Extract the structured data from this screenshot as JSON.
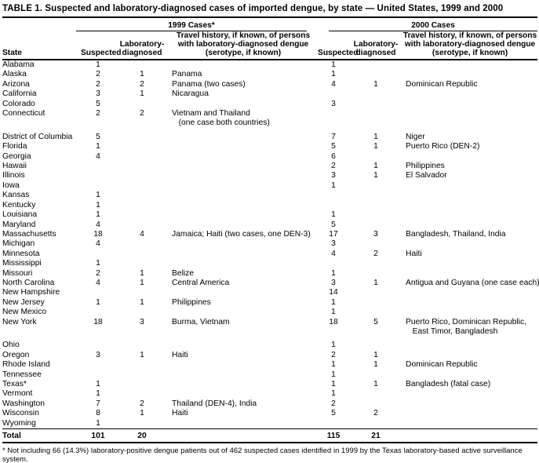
{
  "title": "TABLE 1. Suspected and laboratory-diagnosed cases of imported dengue, by state — United States, 1999 and 2000",
  "header": {
    "state": "State",
    "group_1999": "1999 Cases*",
    "group_2000": "2000 Cases",
    "suspected": "Suspected",
    "lab_diagnosed": "Laboratory-\ndiagnosed",
    "travel": "Travel history, if known, of persons\nwith laboratory-diagnosed dengue\n(serotype, if known)"
  },
  "rows": [
    {
      "state": "Alabama",
      "s99": "1",
      "l99": "",
      "t99": "",
      "s00": "1",
      "l00": "",
      "t00": ""
    },
    {
      "state": "Alaska",
      "s99": "2",
      "l99": "1",
      "t99": "Panama",
      "s00": "1",
      "l00": "",
      "t00": ""
    },
    {
      "state": "Arizona",
      "s99": "2",
      "l99": "2",
      "t99": "Panama (two cases)",
      "s00": "4",
      "l00": "1",
      "t00": "Dominican Republic"
    },
    {
      "state": "California",
      "s99": "3",
      "l99": "1",
      "t99": "Nicaragua",
      "s00": "",
      "l00": "",
      "t00": ""
    },
    {
      "state": "Colorado",
      "s99": "5",
      "l99": "",
      "t99": "",
      "s00": "3",
      "l00": "",
      "t00": ""
    },
    {
      "state": "Connecticut",
      "s99": "2",
      "l99": "2",
      "t99": "Vietnam and Thailand\n   (one case both countries)",
      "s00": "",
      "l00": "",
      "t00": "",
      "gap_after": true
    },
    {
      "state": "District of Columbia",
      "s99": "5",
      "l99": "",
      "t99": "",
      "s00": "7",
      "l00": "1",
      "t00": "Niger"
    },
    {
      "state": "Florida",
      "s99": "1",
      "l99": "",
      "t99": "",
      "s00": "5",
      "l00": "1",
      "t00": "Puerto Rico (DEN-2)"
    },
    {
      "state": "Georgia",
      "s99": "4",
      "l99": "",
      "t99": "",
      "s00": "6",
      "l00": "",
      "t00": ""
    },
    {
      "state": "Hawaii",
      "s99": "",
      "l99": "",
      "t99": "",
      "s00": "2",
      "l00": "1",
      "t00": "Philippines"
    },
    {
      "state": "Illinois",
      "s99": "",
      "l99": "",
      "t99": "",
      "s00": "3",
      "l00": "1",
      "t00": "El Salvador"
    },
    {
      "state": "Iowa",
      "s99": "",
      "l99": "",
      "t99": "",
      "s00": "1",
      "l00": "",
      "t00": ""
    },
    {
      "state": "Kansas",
      "s99": "1",
      "l99": "",
      "t99": "",
      "s00": "",
      "l00": "",
      "t00": ""
    },
    {
      "state": "Kentucky",
      "s99": "1",
      "l99": "",
      "t99": "",
      "s00": "",
      "l00": "",
      "t00": ""
    },
    {
      "state": "Louisiana",
      "s99": "1",
      "l99": "",
      "t99": "",
      "s00": "1",
      "l00": "",
      "t00": ""
    },
    {
      "state": "Maryland",
      "s99": "4",
      "l99": "",
      "t99": "",
      "s00": "5",
      "l00": "",
      "t00": ""
    },
    {
      "state": "Massachusetts",
      "s99": "18",
      "l99": "4",
      "t99": "Jamaica; Haiti (two cases, one DEN-3)",
      "s00": "17",
      "l00": "3",
      "t00": "Bangladesh, Thailand, India"
    },
    {
      "state": "Michigan",
      "s99": "4",
      "l99": "",
      "t99": "",
      "s00": "3",
      "l00": "",
      "t00": ""
    },
    {
      "state": "Minnesota",
      "s99": "",
      "l99": "",
      "t99": "",
      "s00": "4",
      "l00": "2",
      "t00": "Haiti"
    },
    {
      "state": "Mississippi",
      "s99": "1",
      "l99": "",
      "t99": "",
      "s00": "",
      "l00": "",
      "t00": ""
    },
    {
      "state": "Missouri",
      "s99": "2",
      "l99": "1",
      "t99": "Belize",
      "s00": "1",
      "l00": "",
      "t00": ""
    },
    {
      "state": "North Carolina",
      "s99": "4",
      "l99": "1",
      "t99": "Central America",
      "s00": "3",
      "l00": "1",
      "t00": "Antigua and Guyana (one case each)"
    },
    {
      "state": "New Hampshire",
      "s99": "",
      "l99": "",
      "t99": "",
      "s00": "14",
      "l00": "",
      "t00": ""
    },
    {
      "state": "New Jersey",
      "s99": "1",
      "l99": "1",
      "t99": "Philippines",
      "s00": "1",
      "l00": "",
      "t00": ""
    },
    {
      "state": "New Mexico",
      "s99": "",
      "l99": "",
      "t99": "",
      "s00": "1",
      "l00": "",
      "t00": ""
    },
    {
      "state": "New York",
      "s99": "18",
      "l99": "3",
      "t99": "Burma, Vietnam",
      "s00": "18",
      "l00": "5",
      "t00": "Puerto Rico, Dominican Republic,\n   East Timor, Bangladesh",
      "gap_after": true
    },
    {
      "state": "Ohio",
      "s99": "",
      "l99": "",
      "t99": "",
      "s00": "1",
      "l00": "",
      "t00": ""
    },
    {
      "state": "Oregon",
      "s99": "3",
      "l99": "1",
      "t99": "Haiti",
      "s00": "2",
      "l00": "1",
      "t00": ""
    },
    {
      "state": "Rhode Island",
      "s99": "",
      "l99": "",
      "t99": "",
      "s00": "1",
      "l00": "1",
      "t00": "Dominican Republic"
    },
    {
      "state": "Tennessee",
      "s99": "",
      "l99": "",
      "t99": "",
      "s00": "1",
      "l00": "",
      "t00": ""
    },
    {
      "state": "Texas*",
      "s99": "1",
      "l99": "",
      "t99": "",
      "s00": "1",
      "l00": "1",
      "t00": "Bangladesh (fatal case)"
    },
    {
      "state": "Vermont",
      "s99": "1",
      "l99": "",
      "t99": "",
      "s00": "1",
      "l00": "",
      "t00": ""
    },
    {
      "state": "Washington",
      "s99": "7",
      "l99": "2",
      "t99": "Thailand (DEN-4), India",
      "s00": "2",
      "l00": "",
      "t00": ""
    },
    {
      "state": "Wisconsin",
      "s99": "8",
      "l99": "1",
      "t99": "Haiti",
      "s00": "5",
      "l00": "2",
      "t00": ""
    },
    {
      "state": "Wyoming",
      "s99": "1",
      "l99": "",
      "t99": "",
      "s00": "",
      "l00": "",
      "t00": ""
    }
  ],
  "total": {
    "label": "Total",
    "s99": "101",
    "l99": "20",
    "s00": "115",
    "l00": "21"
  },
  "footnote": "* Not including 66 (14.3%) laboratory-positive dengue patients out of 462 suspected cases identified in 1999 by the Texas laboratory-based active surveillance system.",
  "colors": {
    "text": "#000000",
    "background": "#ffffff",
    "rule": "#000000"
  }
}
